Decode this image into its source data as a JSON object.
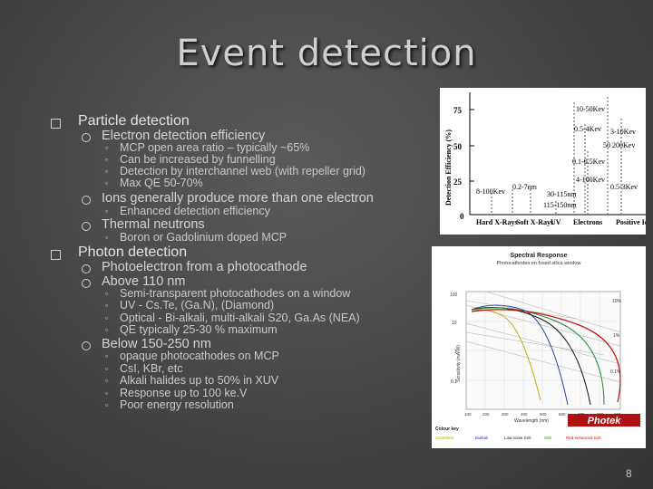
{
  "slide": {
    "title": "Event detection",
    "page_number": "8"
  },
  "bullets": {
    "particle": {
      "label": "Particle detection",
      "electron": {
        "label": "Electron detection efficiency",
        "items": [
          "MCP open area ratio – typically ~65%",
          "Can be increased by funnelling",
          "Detection by interchannel web  (with repeller grid)",
          "Max QE 50-70%"
        ]
      },
      "ions": {
        "label": "Ions generally produce more than one electron",
        "items": [
          "Enhanced detection efficiency"
        ]
      },
      "neutrons": {
        "label": "Thermal neutrons",
        "items": [
          "Boron or Gadolinium doped MCP"
        ]
      }
    },
    "photon": {
      "label": "Photon detection",
      "photoelectron": {
        "label": "Photoelectron from a  photocathode"
      },
      "above": {
        "label": "Above 110 nm",
        "items": [
          "Semi-transparent photocathodes on a window",
          "UV - Cs.Te, (Ga.N), (Diamond)",
          "Optical - Bi-alkali, multi-alkali S20, Ga.As (NEA)",
          "QE typically 25-30 % maximum"
        ]
      },
      "below": {
        "label": "Below 150-250 nm",
        "items": [
          "opaque photocathodes on MCP",
          "CsI, KBr, etc",
          "Alkali halides up to 50% in XUV",
          "Response up to 100 ke.V",
          "Poor energy resolution"
        ]
      }
    }
  },
  "figure_efficiency": {
    "ylabel": "Detection Efficiency (%)",
    "yticks": [
      "75",
      "50",
      "25",
      "0"
    ],
    "annotations": [
      "10-50Kev",
      "0.5-4Kev",
      "3-10Kev",
      "50 200Kev",
      "0.1-0.5Kev",
      "4-100Kev",
      "0.5-3Kev",
      "8-100Kev",
      "0.2-7nm",
      "30-115nm",
      "115-150nm"
    ],
    "categories": [
      "Hard X-Rays",
      "Soft X-Rays",
      "UV",
      "Electrons",
      "Positive Ions"
    ]
  },
  "figure_spectral": {
    "title": "Spectral Response",
    "subtitle": "Photocathodes on fused silica window",
    "ylabel": "Sensitivity (mA/W)",
    "xlabel": "Wavelength (nm)",
    "yticks": [
      "100",
      "10",
      "1",
      "0.1"
    ],
    "right_ticks": [
      "10%",
      "1%",
      "0.1%"
    ],
    "xticks": [
      "100",
      "200",
      "300",
      "400",
      "500",
      "600",
      "700",
      "800",
      "900"
    ],
    "logo": "Photek",
    "key_title": "Colour key",
    "key": [
      "Solarblind",
      "Bialkali",
      "Low noise S20",
      "S20",
      "Red enhanced S20"
    ]
  }
}
